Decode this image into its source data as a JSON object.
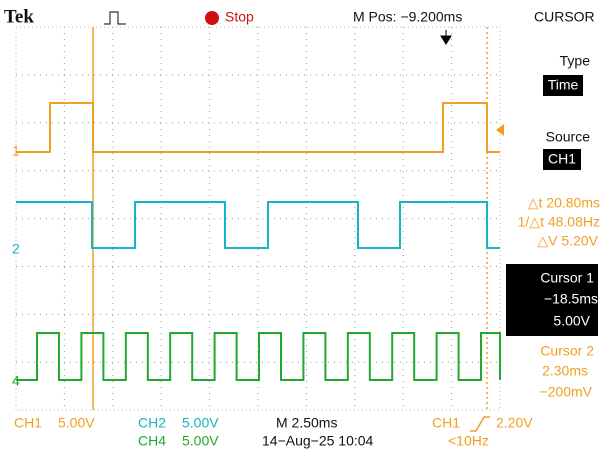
{
  "header": {
    "brand": "Tek",
    "status": "Stop",
    "position": "M Pos: −9.200ms",
    "menu": "CURSOR"
  },
  "menu": {
    "type_label": "Type",
    "type_value": "Time",
    "source_label": "Source",
    "source_value": "CH1",
    "delta_t": "△t 20.80ms",
    "inv_delta_t": "1/△t 48.08Hz",
    "delta_v": "△V 5.20V",
    "cursor1": {
      "title": "Cursor 1",
      "time": "−18.5ms",
      "volt": "5.00V"
    },
    "cursor2": {
      "title": "Cursor 2",
      "time": "2.30ms",
      "volt": "−200mV"
    }
  },
  "markers": {
    "ch1": "1",
    "ch2": "2",
    "ch4": "4"
  },
  "footer": {
    "ch1": "CH1",
    "ch1_scale": "5.00V",
    "ch2": "CH2",
    "ch2_scale": "5.00V",
    "ch4": "CH4",
    "ch4_scale": "5.00V",
    "timebase": "M 2.50ms",
    "datetime": "14−Aug−25 10:04",
    "trigger_source": "CH1",
    "trigger_level": "2.20V",
    "frequency": "<10Hz"
  }
}
